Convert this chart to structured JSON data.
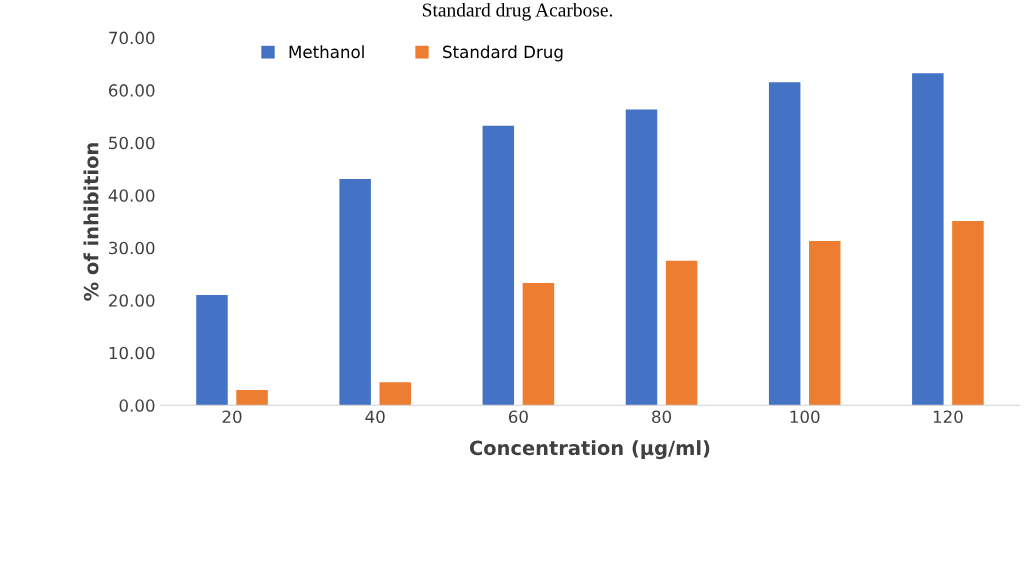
{
  "chart_data": {
    "type": "bar",
    "title": "Standard drug Acarbose.",
    "xlabel": "Concentration (µg/ml)",
    "ylabel": "% of inhibition",
    "categories": [
      "20",
      "40",
      "60",
      "80",
      "100",
      "120"
    ],
    "series": [
      {
        "name": "Methanol",
        "color": "#4472c4",
        "values": [
          21.0,
          43.1,
          53.2,
          56.3,
          61.5,
          63.2
        ]
      },
      {
        "name": "Standard Drug",
        "color": "#ed7d31",
        "values": [
          2.9,
          4.4,
          23.3,
          27.5,
          31.3,
          35.1
        ]
      }
    ],
    "ylim": [
      0,
      70
    ],
    "yticks": [
      {
        "value": 0,
        "label": "0.00"
      },
      {
        "value": 10,
        "label": "10.00"
      },
      {
        "value": 20,
        "label": "20.00"
      },
      {
        "value": 30,
        "label": "30.00"
      },
      {
        "value": 40,
        "label": "40.00"
      },
      {
        "value": 50,
        "label": "50.00"
      },
      {
        "value": 60,
        "label": "60.00"
      },
      {
        "value": 70,
        "label": "70.00"
      }
    ],
    "grid": false,
    "legend": "top left"
  }
}
